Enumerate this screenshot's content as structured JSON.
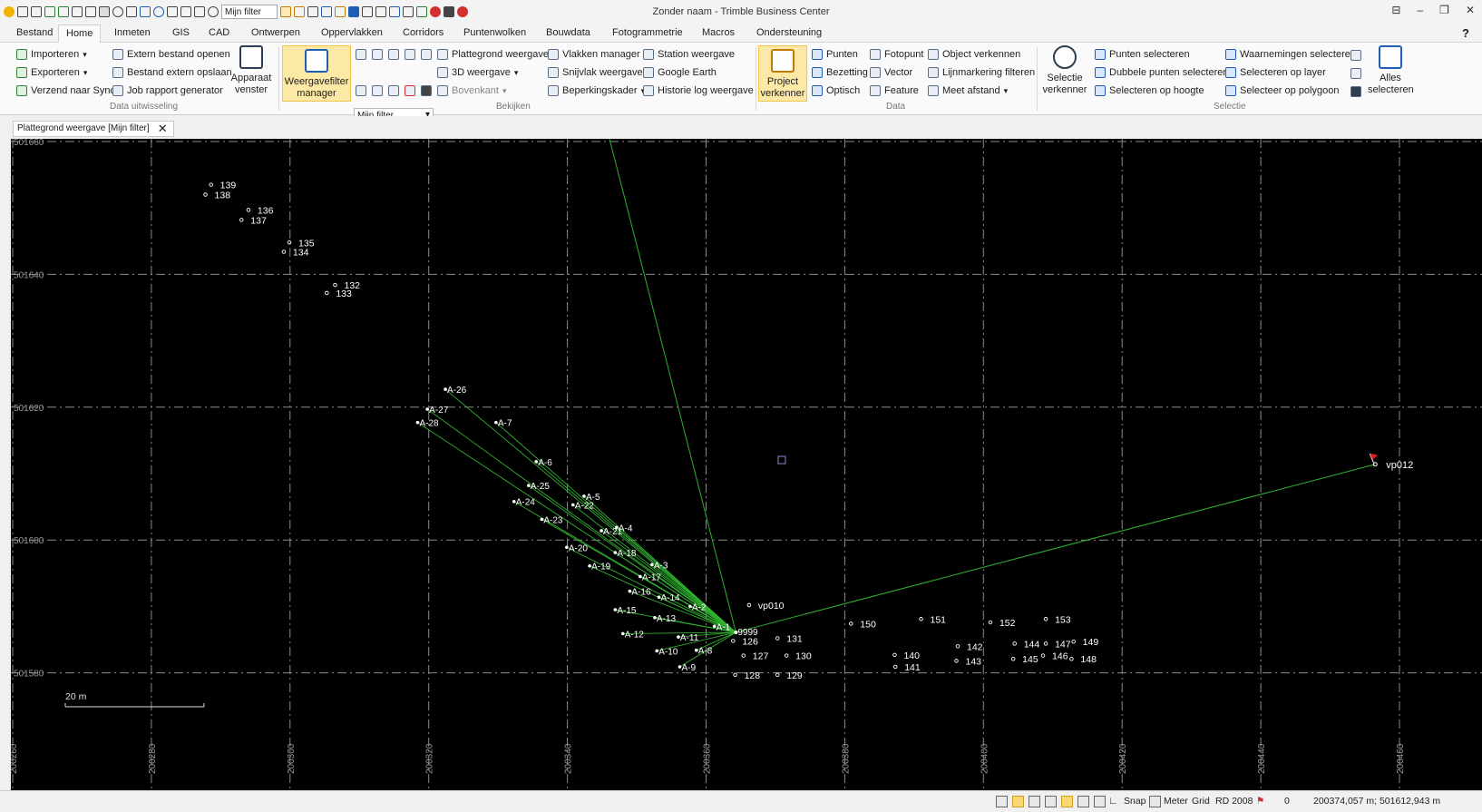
{
  "window": {
    "title": "Zonder naam - Trimble Business Center",
    "qat_filter": "Mijn filter",
    "controls": [
      "⊟",
      "–",
      "❐",
      "✕"
    ]
  },
  "menu": {
    "tabs": [
      "Bestand",
      "Home",
      "Inmeten",
      "GIS",
      "CAD",
      "Ontwerpen",
      "Oppervlakken",
      "Corridors",
      "Puntenwolken",
      "Bouwdata",
      "Fotogrammetrie",
      "Macros",
      "Ondersteuning"
    ],
    "active": "Home",
    "help": "?"
  },
  "ribbon": {
    "data_uitwisseling": {
      "label": "Data uitwisseling",
      "items": [
        "Importeren",
        "Exporteren",
        "Verzend naar Sync",
        "Extern bestand openen",
        "Bestand extern opslaan",
        "Job rapport generator"
      ],
      "apparaat": [
        "Apparaat",
        "venster"
      ]
    },
    "bekijken": {
      "label": "Bekijken",
      "wf": [
        "Weergavefilter",
        "manager"
      ],
      "filter": "Mijn filter",
      "items": [
        "Plattegrond weergave",
        "3D weergave",
        "Bovenkant",
        "Vlakken manager",
        "Snijvlak weergave",
        "Beperkingskader",
        "Station weergave",
        "Google Earth",
        "Historie log weergave"
      ]
    },
    "data": {
      "label": "Data",
      "pv": [
        "Project",
        "verkenner"
      ],
      "items": [
        "Punten",
        "Bezetting",
        "Optisch",
        "Fotopunt",
        "Vector",
        "Feature",
        "Object verkennen",
        "Lijnmarkering filteren",
        "Meet afstand"
      ]
    },
    "selectie": {
      "label": "Selectie",
      "sv": [
        "Selectie",
        "verkenner"
      ],
      "items": [
        "Punten selecteren",
        "Dubbele punten selecteren",
        "Selecteren op hoogte",
        "Waarnemingen selecteren",
        "Selecteren op layer",
        "Selecteer op polygoon"
      ],
      "alles": [
        "Alles",
        "selecteren"
      ]
    }
  },
  "doc_tab": "Plattegrond weergave [Mijn filter]",
  "plan": {
    "y_ticks": [
      "501660",
      "501640",
      "501620",
      "501600",
      "501580"
    ],
    "x_ticks": [
      "200260",
      "200280",
      "200300",
      "200320",
      "200340",
      "200360",
      "200380",
      "200400",
      "200420",
      "200440",
      "200460"
    ],
    "scale_label": "20 m",
    "station": "9999",
    "points": [
      {
        "id": "139",
        "e": 200288.6,
        "n": 501653.5
      },
      {
        "id": "138",
        "e": 200287.8,
        "n": 501652.0
      },
      {
        "id": "136",
        "e": 200294.0,
        "n": 501649.7
      },
      {
        "id": "137",
        "e": 200293.0,
        "n": 501648.2
      },
      {
        "id": "135",
        "e": 200299.9,
        "n": 501644.8
      },
      {
        "id": "134",
        "e": 200299.1,
        "n": 501643.4
      },
      {
        "id": "132",
        "e": 200306.5,
        "n": 501638.4
      },
      {
        "id": "133",
        "e": 200305.3,
        "n": 501637.2
      },
      {
        "id": "A-26",
        "e": 200322.4,
        "n": 501622.7
      },
      {
        "id": "A-27",
        "e": 200319.8,
        "n": 501619.7
      },
      {
        "id": "A-28",
        "e": 200318.4,
        "n": 501617.7
      },
      {
        "id": "A-7",
        "e": 200329.7,
        "n": 501617.7
      },
      {
        "id": "A-6",
        "e": 200335.5,
        "n": 501611.8
      },
      {
        "id": "A-25",
        "e": 200334.4,
        "n": 501608.2
      },
      {
        "id": "A-5",
        "e": 200342.4,
        "n": 501606.6
      },
      {
        "id": "A-24",
        "e": 200332.3,
        "n": 501605.8
      },
      {
        "id": "A-22",
        "e": 200340.8,
        "n": 501605.3
      },
      {
        "id": "A-23",
        "e": 200336.3,
        "n": 501603.1
      },
      {
        "id": "A-4",
        "e": 200347.1,
        "n": 501601.9
      },
      {
        "id": "A-21",
        "e": 200344.9,
        "n": 501601.4
      },
      {
        "id": "A-20",
        "e": 200339.9,
        "n": 501598.9
      },
      {
        "id": "A-18",
        "e": 200346.9,
        "n": 501598.1
      },
      {
        "id": "A-19",
        "e": 200343.2,
        "n": 501596.1
      },
      {
        "id": "A-3",
        "e": 200352.2,
        "n": 501596.3
      },
      {
        "id": "A-17",
        "e": 200350.5,
        "n": 501594.5
      },
      {
        "id": "A-16",
        "e": 200349.0,
        "n": 501592.3
      },
      {
        "id": "A-14",
        "e": 200353.2,
        "n": 501591.4
      },
      {
        "id": "A-2",
        "e": 200357.7,
        "n": 501590.0
      },
      {
        "id": "vp010",
        "e": 200366.2,
        "n": 501590.2
      },
      {
        "id": "A-15",
        "e": 200346.9,
        "n": 501589.5
      },
      {
        "id": "A-13",
        "e": 200352.6,
        "n": 501588.3
      },
      {
        "id": "A-1",
        "e": 200361.2,
        "n": 501587.0
      },
      {
        "id": "A-12",
        "e": 200348.0,
        "n": 501585.9
      },
      {
        "id": "A-11",
        "e": 200356.0,
        "n": 501585.4
      },
      {
        "id": "126",
        "e": 200363.9,
        "n": 501584.8
      },
      {
        "id": "131",
        "e": 200370.3,
        "n": 501585.2
      },
      {
        "id": "A-10",
        "e": 200352.9,
        "n": 501583.3
      },
      {
        "id": "A-8",
        "e": 200358.6,
        "n": 501583.4
      },
      {
        "id": "127",
        "e": 200365.4,
        "n": 501582.6
      },
      {
        "id": "130",
        "e": 200371.6,
        "n": 501582.6
      },
      {
        "id": "A-9",
        "e": 200356.2,
        "n": 501580.9
      },
      {
        "id": "128",
        "e": 200364.2,
        "n": 501579.7
      },
      {
        "id": "129",
        "e": 200370.3,
        "n": 501579.7
      },
      {
        "id": "150",
        "e": 200380.9,
        "n": 501587.4
      },
      {
        "id": "151",
        "e": 200391.0,
        "n": 501588.1
      },
      {
        "id": "152",
        "e": 200401.0,
        "n": 501587.6
      },
      {
        "id": "153",
        "e": 200409.0,
        "n": 501588.1
      },
      {
        "id": "142",
        "e": 200396.3,
        "n": 501584.0
      },
      {
        "id": "144",
        "e": 200404.5,
        "n": 501584.4
      },
      {
        "id": "147",
        "e": 200409.0,
        "n": 501584.4
      },
      {
        "id": "149",
        "e": 200413.0,
        "n": 501584.7
      },
      {
        "id": "140",
        "e": 200387.2,
        "n": 501582.7
      },
      {
        "id": "143",
        "e": 200396.1,
        "n": 501581.8
      },
      {
        "id": "145",
        "e": 200404.3,
        "n": 501582.1
      },
      {
        "id": "146",
        "e": 200408.6,
        "n": 501582.6
      },
      {
        "id": "148",
        "e": 200412.7,
        "n": 501582.1
      },
      {
        "id": "141",
        "e": 200387.3,
        "n": 501580.9
      }
    ],
    "vp012": {
      "id": "vp012",
      "e": 200456.5,
      "n": 501611.4
    },
    "setup": {
      "e": 200364.3,
      "n": 501586.1
    }
  },
  "status": {
    "snap": "Snap",
    "meter": "Meter",
    "grid": "Grid",
    "crs": "RD 2008",
    "count": "0",
    "coords": "200374,057 m; 501612,943 m"
  }
}
